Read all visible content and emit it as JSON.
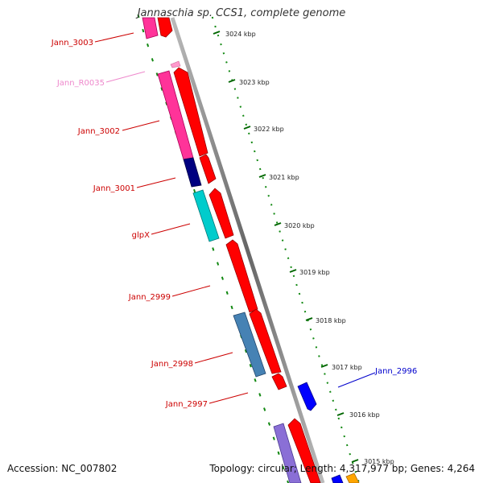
{
  "title": "Jannaschia sp. CCS1, complete genome",
  "accession": "Accession: NC_007802",
  "topology": "Topology: circular; Length: 4,317,977 bp; Genes: 4,264",
  "ticks": [
    {
      "label": "3024 kbp"
    },
    {
      "label": "3023 kbp"
    },
    {
      "label": "3022 kbp"
    },
    {
      "label": "3021 kbp"
    },
    {
      "label": "3020 kbp"
    },
    {
      "label": "3019 kbp"
    },
    {
      "label": "3018 kbp"
    },
    {
      "label": "3017 kbp"
    },
    {
      "label": "3016 kbp"
    },
    {
      "label": "3015 kbp"
    }
  ],
  "gene_labels": [
    {
      "name": "Jann_3003",
      "color": "#cc0000"
    },
    {
      "name": "Jann_R0035",
      "color": "#ee88cc"
    },
    {
      "name": "Jann_3002",
      "color": "#cc0000"
    },
    {
      "name": "Jann_3001",
      "color": "#cc0000"
    },
    {
      "name": "glpX",
      "color": "#cc0000"
    },
    {
      "name": "Jann_2999",
      "color": "#cc0000"
    },
    {
      "name": "Jann_2998",
      "color": "#cc0000"
    },
    {
      "name": "Jann_2997",
      "color": "#cc0000"
    },
    {
      "name": "Jann_2996",
      "color": "#0000cc"
    }
  ],
  "colors": {
    "cds": "#ff0000",
    "gene_pink": "#ff3399",
    "rna_light_pink": "#ff99cc",
    "navy": "#000080",
    "cyan": "#00cccc",
    "steelblue": "#4682b4",
    "lavender": "#8a6fd6",
    "blue": "#0000ff",
    "orange": "#ffa500",
    "backbone": "#888888",
    "tick_green": "#006600"
  }
}
